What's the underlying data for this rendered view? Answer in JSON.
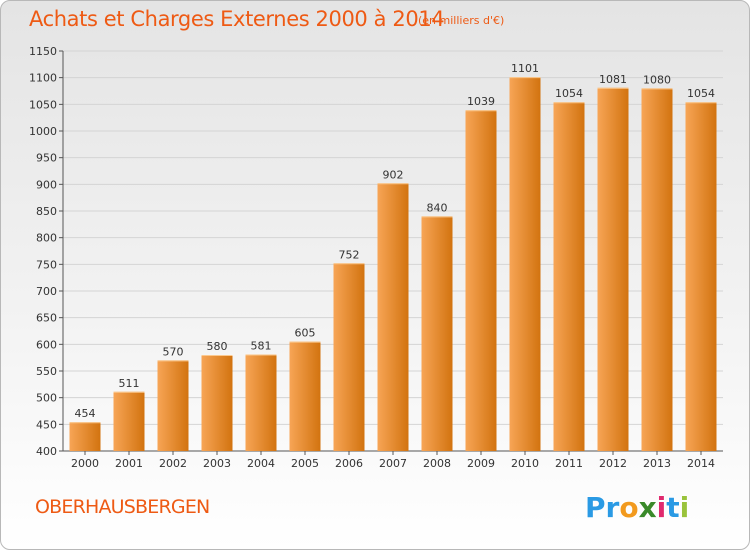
{
  "title": "Achats et Charges Externes 2000 à 2014",
  "subtitle": "(en milliers d'€)",
  "place": "OBERHAUSBERGEN",
  "logo": {
    "text": "Proxiti",
    "letters": [
      "P",
      "r",
      "o",
      "x",
      "i",
      "t",
      "i"
    ]
  },
  "colors": {
    "title": "#ee5a14",
    "bar_light": "#f7a556",
    "bar_dark": "#d2730f",
    "grid": "#d4d4d4",
    "logo_letters": [
      "#2a9ae4",
      "#2a9ae4",
      "#f29a1e",
      "#3a8a2a",
      "#e02a6e",
      "#2a9ae4",
      "#9ac33c"
    ]
  },
  "chart_data": {
    "type": "bar",
    "title": "Achats et Charges Externes 2000 à 2014",
    "subtitle": "(en milliers d'€)",
    "xlabel": "",
    "ylabel": "",
    "categories": [
      "2000",
      "2001",
      "2002",
      "2003",
      "2004",
      "2005",
      "2006",
      "2007",
      "2008",
      "2009",
      "2010",
      "2011",
      "2012",
      "2013",
      "2014"
    ],
    "values": [
      454,
      511,
      570,
      580,
      581,
      605,
      752,
      902,
      840,
      1039,
      1101,
      1054,
      1081,
      1080,
      1054
    ],
    "ylim": [
      400,
      1150
    ],
    "yticks": [
      400,
      450,
      500,
      550,
      600,
      650,
      700,
      750,
      800,
      850,
      900,
      950,
      1000,
      1050,
      1100,
      1150
    ],
    "grid": true,
    "data_labels": true
  }
}
